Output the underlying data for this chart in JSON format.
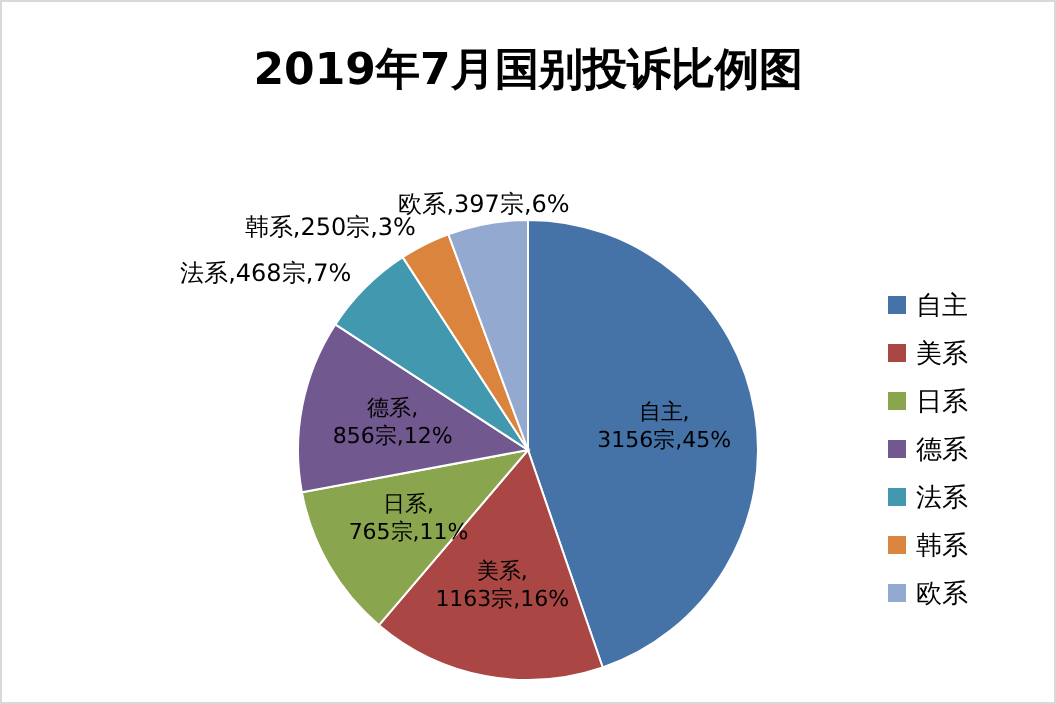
{
  "chart_data": {
    "type": "pie",
    "title": "2019年7月国别投诉比例图",
    "categories": [
      "自主",
      "美系",
      "日系",
      "德系",
      "法系",
      "韩系",
      "欧系"
    ],
    "values": [
      3156,
      1163,
      765,
      856,
      468,
      250,
      397
    ],
    "colors": [
      "#4572a7",
      "#aa4643",
      "#89a54e",
      "#71588f",
      "#4198af",
      "#db843d",
      "#93a9cf"
    ],
    "value_labels": [
      "自主,\n3156宗,45%",
      "美系,\n1163宗,16%",
      "日系,\n765宗,11%",
      "德系,\n856宗,12%",
      "法系,468宗,7%",
      "韩系,250宗,3%",
      "欧系,397宗,6%"
    ],
    "legend": "right"
  }
}
